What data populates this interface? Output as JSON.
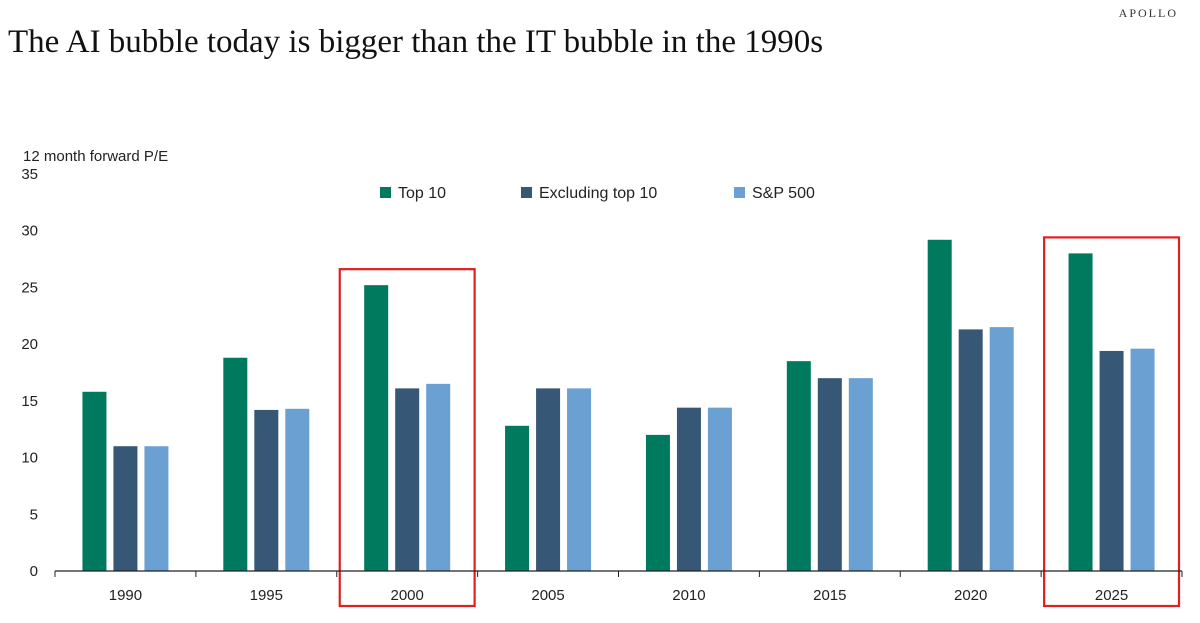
{
  "brand": "APOLLO",
  "title": "The AI bubble today is bigger than the IT bubble in the 1990s",
  "chart_data": {
    "type": "bar",
    "categories": [
      "1990",
      "1995",
      "2000",
      "2005",
      "2010",
      "2015",
      "2020",
      "2025"
    ],
    "series": [
      {
        "name": "Top 10",
        "color": "#007a5e",
        "values": [
          15.8,
          18.8,
          25.2,
          12.8,
          12.0,
          18.5,
          29.2,
          28.0
        ]
      },
      {
        "name": "Excluding top 10",
        "color": "#365776",
        "values": [
          11.0,
          14.2,
          16.1,
          16.1,
          14.4,
          17.0,
          21.3,
          19.4
        ]
      },
      {
        "name": "S&P 500",
        "color": "#6aa0d2",
        "values": [
          11.0,
          14.3,
          16.5,
          16.1,
          14.4,
          17.0,
          21.5,
          19.6
        ]
      }
    ],
    "ylabel": "12 month forward P/E",
    "xlabel": "",
    "ylim": [
      0,
      35
    ],
    "yticks": [
      0,
      5,
      10,
      15,
      20,
      25,
      30,
      35
    ],
    "grid": false,
    "legend_position": "top-center",
    "highlighted_categories": [
      "2000",
      "2025"
    ],
    "highlight_color": "#e02020"
  }
}
